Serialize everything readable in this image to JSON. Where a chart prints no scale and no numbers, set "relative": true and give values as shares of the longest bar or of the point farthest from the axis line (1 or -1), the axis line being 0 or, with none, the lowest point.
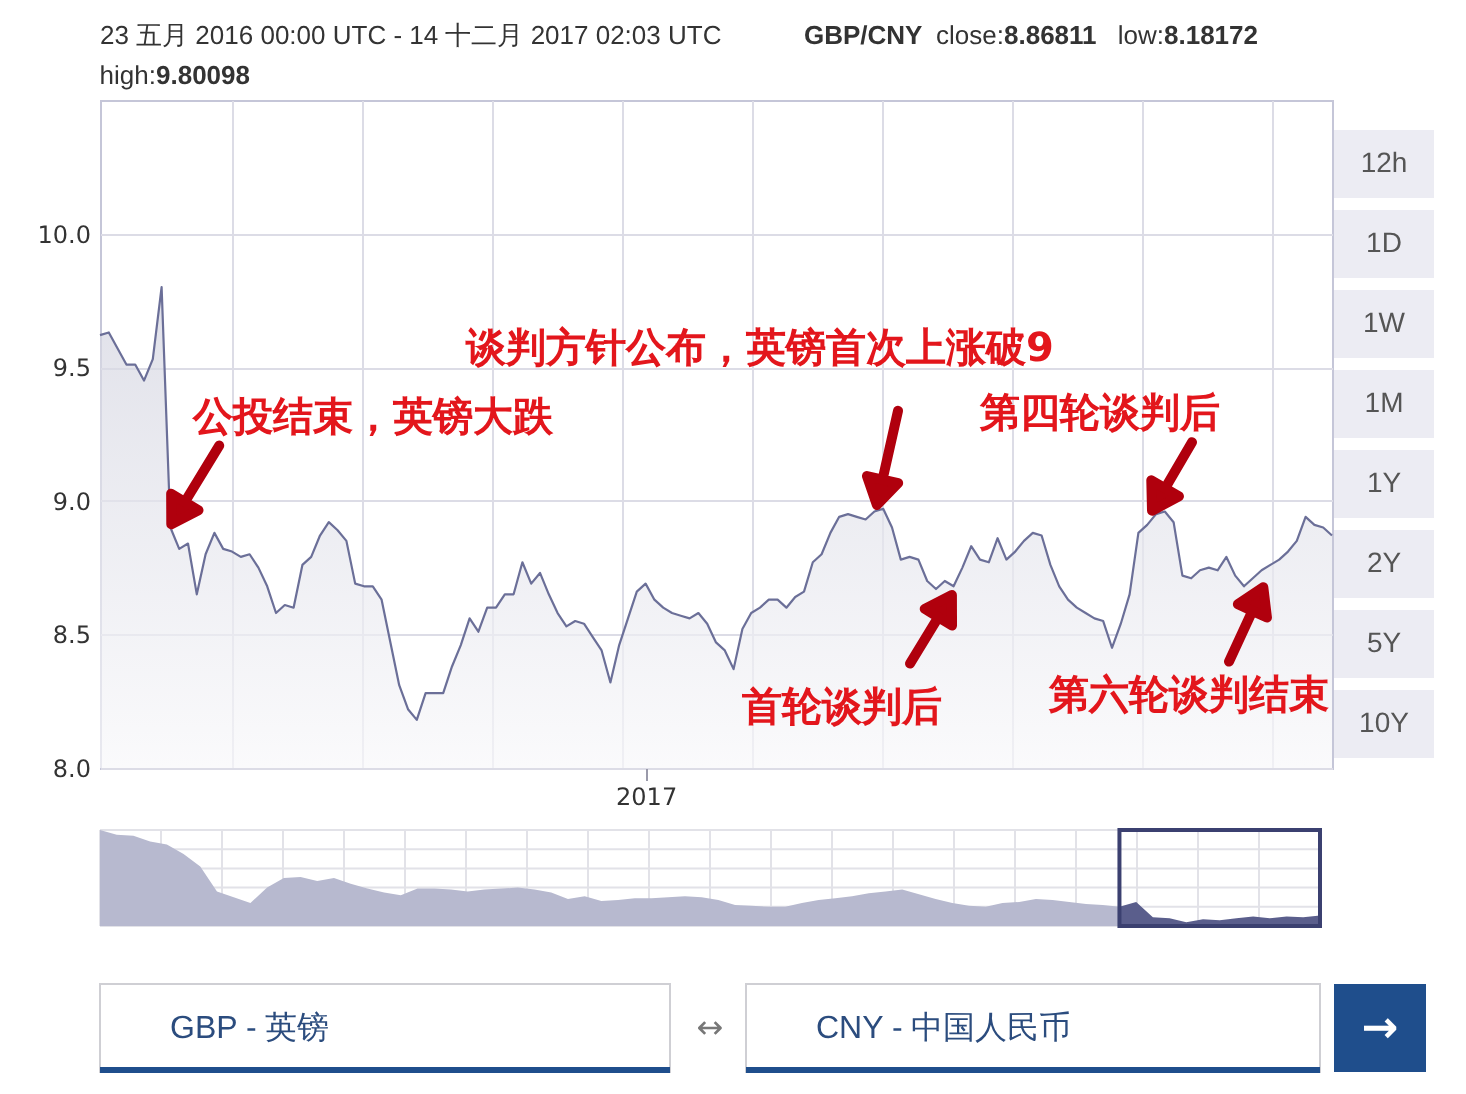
{
  "chart_data": [
    {
      "type": "area",
      "title": "23 五月 2016 00:00 UTC - 14 十二月 2017 02:03 UTC",
      "annotations": [
        "GBP/CNY",
        "close:8.86811",
        "low:8.18172",
        "high:9.80098",
        "12h",
        "1D",
        "1W",
        "1M",
        "1Y",
        "2Y",
        "5Y",
        "10Y",
        "GBP - 英镑",
        "↔",
        "CNY - 中国人民币",
        "→",
        "公投结束，英镑大跌",
        "谈判方针公布，英镑首次上涨破9",
        "首轮谈判后",
        "第四轮谈判后",
        "第六轮谈判结束"
      ],
      "categories": [
        null,
        null,
        null,
        null,
        null,
        null,
        null,
        null,
        null,
        null,
        null,
        null,
        null,
        null,
        null,
        null,
        null,
        null,
        null,
        null,
        null,
        null,
        null,
        null,
        null,
        null,
        null,
        null,
        null,
        null,
        null,
        null,
        null,
        null,
        null,
        null,
        null,
        null,
        null,
        null,
        null,
        null,
        null,
        null,
        null,
        null,
        null,
        null,
        null,
        null,
        null,
        null,
        null,
        null,
        null,
        null,
        null,
        null,
        null,
        null,
        null,
        null,
        "2017",
        null,
        null,
        null,
        null,
        null,
        null,
        null,
        null,
        null,
        null,
        null,
        null,
        null,
        null,
        null,
        null,
        null,
        null,
        null,
        null,
        null,
        null,
        null,
        null,
        null,
        null,
        null,
        null,
        null,
        null,
        null,
        null,
        null,
        null,
        null,
        null,
        null,
        null,
        null,
        null,
        null,
        null,
        null,
        null,
        null,
        null,
        null,
        null,
        null,
        null,
        null,
        null,
        null,
        null,
        null,
        null,
        null,
        null,
        null,
        null,
        null,
        null,
        null,
        null,
        null,
        null,
        null,
        null,
        null,
        null,
        null,
        null,
        null,
        null,
        null,
        null,
        null,
        null
      ],
      "series": [
        {
          "color": "#6b6f98",
          "values": [
            9.62,
            9.63,
            9.57,
            9.51,
            9.51,
            9.45,
            9.53,
            9.8,
            8.9,
            8.82,
            8.84,
            8.65,
            8.8,
            8.88,
            8.82,
            8.81,
            8.79,
            8.8,
            8.75,
            8.68,
            8.58,
            8.61,
            8.6,
            8.76,
            8.79,
            8.87,
            8.92,
            8.89,
            8.85,
            8.69,
            8.68,
            8.68,
            8.63,
            8.47,
            8.31,
            8.22,
            8.18,
            8.28,
            8.28,
            8.28,
            8.38,
            8.46,
            8.56,
            8.51,
            8.6,
            8.6,
            8.65,
            8.65,
            8.77,
            8.69,
            8.73,
            8.65,
            8.58,
            8.53,
            8.55,
            8.54,
            8.49,
            8.44,
            8.32,
            8.46,
            8.56,
            8.66,
            8.69,
            8.63,
            8.6,
            8.58,
            8.57,
            8.56,
            8.58,
            8.54,
            8.47,
            8.44,
            8.37,
            8.52,
            8.58,
            8.6,
            8.63,
            8.63,
            8.6,
            8.64,
            8.66,
            8.77,
            8.8,
            8.88,
            8.94,
            8.95,
            8.94,
            8.93,
            8.96,
            8.97,
            8.9,
            8.78,
            8.79,
            8.78,
            8.7,
            8.67,
            8.7,
            8.68,
            8.75,
            8.83,
            8.78,
            8.77,
            8.86,
            8.78,
            8.81,
            8.85,
            8.88,
            8.87,
            8.76,
            8.68,
            8.63,
            8.6,
            8.58,
            8.56,
            8.55,
            8.45,
            8.54,
            8.65,
            8.88,
            8.91,
            8.95,
            8.96,
            8.92,
            8.72,
            8.71,
            8.74,
            8.75,
            8.74,
            8.79,
            8.72,
            8.68,
            8.71,
            8.74,
            8.76,
            8.78,
            8.81,
            8.85,
            8.94,
            8.91,
            8.9,
            8.87
          ]
        }
      ],
      "ylim": [
        8.0,
        10.5
      ],
      "yticks": [
        {
          "value": 8,
          "label": "8.0"
        },
        {
          "value": 8.5,
          "label": "8.5"
        },
        {
          "value": 9,
          "label": "9.0"
        },
        {
          "value": 9.5,
          "label": "9.5"
        },
        {
          "value": 10,
          "label": "10.0"
        }
      ],
      "grid": true
    },
    {
      "type": "area",
      "relative": true,
      "grid": true,
      "categories": [
        null,
        null,
        null,
        null,
        null,
        null,
        null,
        null,
        null,
        null,
        null,
        null,
        null,
        null,
        null,
        null,
        null,
        null,
        null,
        null,
        null,
        null,
        null,
        null,
        null,
        null,
        null,
        null,
        null,
        null,
        null,
        null,
        null,
        null,
        null,
        null,
        null,
        null,
        null,
        null,
        null,
        null,
        null,
        null,
        null,
        null,
        null,
        null,
        null,
        null,
        null,
        null,
        null,
        null,
        null,
        null,
        null,
        null,
        null,
        null,
        null,
        null,
        null,
        null,
        null,
        null,
        null,
        null,
        null,
        null,
        null,
        null,
        null,
        null
      ],
      "series": [
        {
          "color": "#b7b9cf",
          "values": [
            1.0,
            0.95,
            0.94,
            0.88,
            0.85,
            0.75,
            0.62,
            0.36,
            0.3,
            0.24,
            0.4,
            0.5,
            0.51,
            0.47,
            0.5,
            0.44,
            0.39,
            0.35,
            0.32,
            0.39,
            0.39,
            0.38,
            0.36,
            0.38,
            0.39,
            0.4,
            0.38,
            0.35,
            0.28,
            0.31,
            0.26,
            0.27,
            0.29,
            0.29,
            0.3,
            0.31,
            0.3,
            0.27,
            0.22,
            0.21,
            0.2,
            0.2,
            0.24,
            0.27,
            0.29,
            0.31,
            0.34,
            0.36,
            0.38,
            0.33,
            0.28,
            0.24,
            0.21,
            0.2,
            0.24,
            0.25,
            0.28,
            0.27,
            0.25,
            0.23,
            0.22,
            0.2,
            null,
            null,
            null,
            null,
            null,
            null,
            null,
            null,
            null,
            null,
            null,
            null
          ]
        },
        {
          "color": "#5a5e8c",
          "values": [
            null,
            null,
            null,
            null,
            null,
            null,
            null,
            null,
            null,
            null,
            null,
            null,
            null,
            null,
            null,
            null,
            null,
            null,
            null,
            null,
            null,
            null,
            null,
            null,
            null,
            null,
            null,
            null,
            null,
            null,
            null,
            null,
            null,
            null,
            null,
            null,
            null,
            null,
            null,
            null,
            null,
            null,
            null,
            null,
            null,
            null,
            null,
            null,
            null,
            null,
            null,
            null,
            null,
            null,
            null,
            null,
            null,
            null,
            null,
            null,
            null,
            0.2,
            0.25,
            0.09,
            0.08,
            0.04,
            0.07,
            0.06,
            0.08,
            0.1,
            0.08,
            0.1,
            0.09,
            0.11
          ]
        }
      ]
    }
  ]
}
